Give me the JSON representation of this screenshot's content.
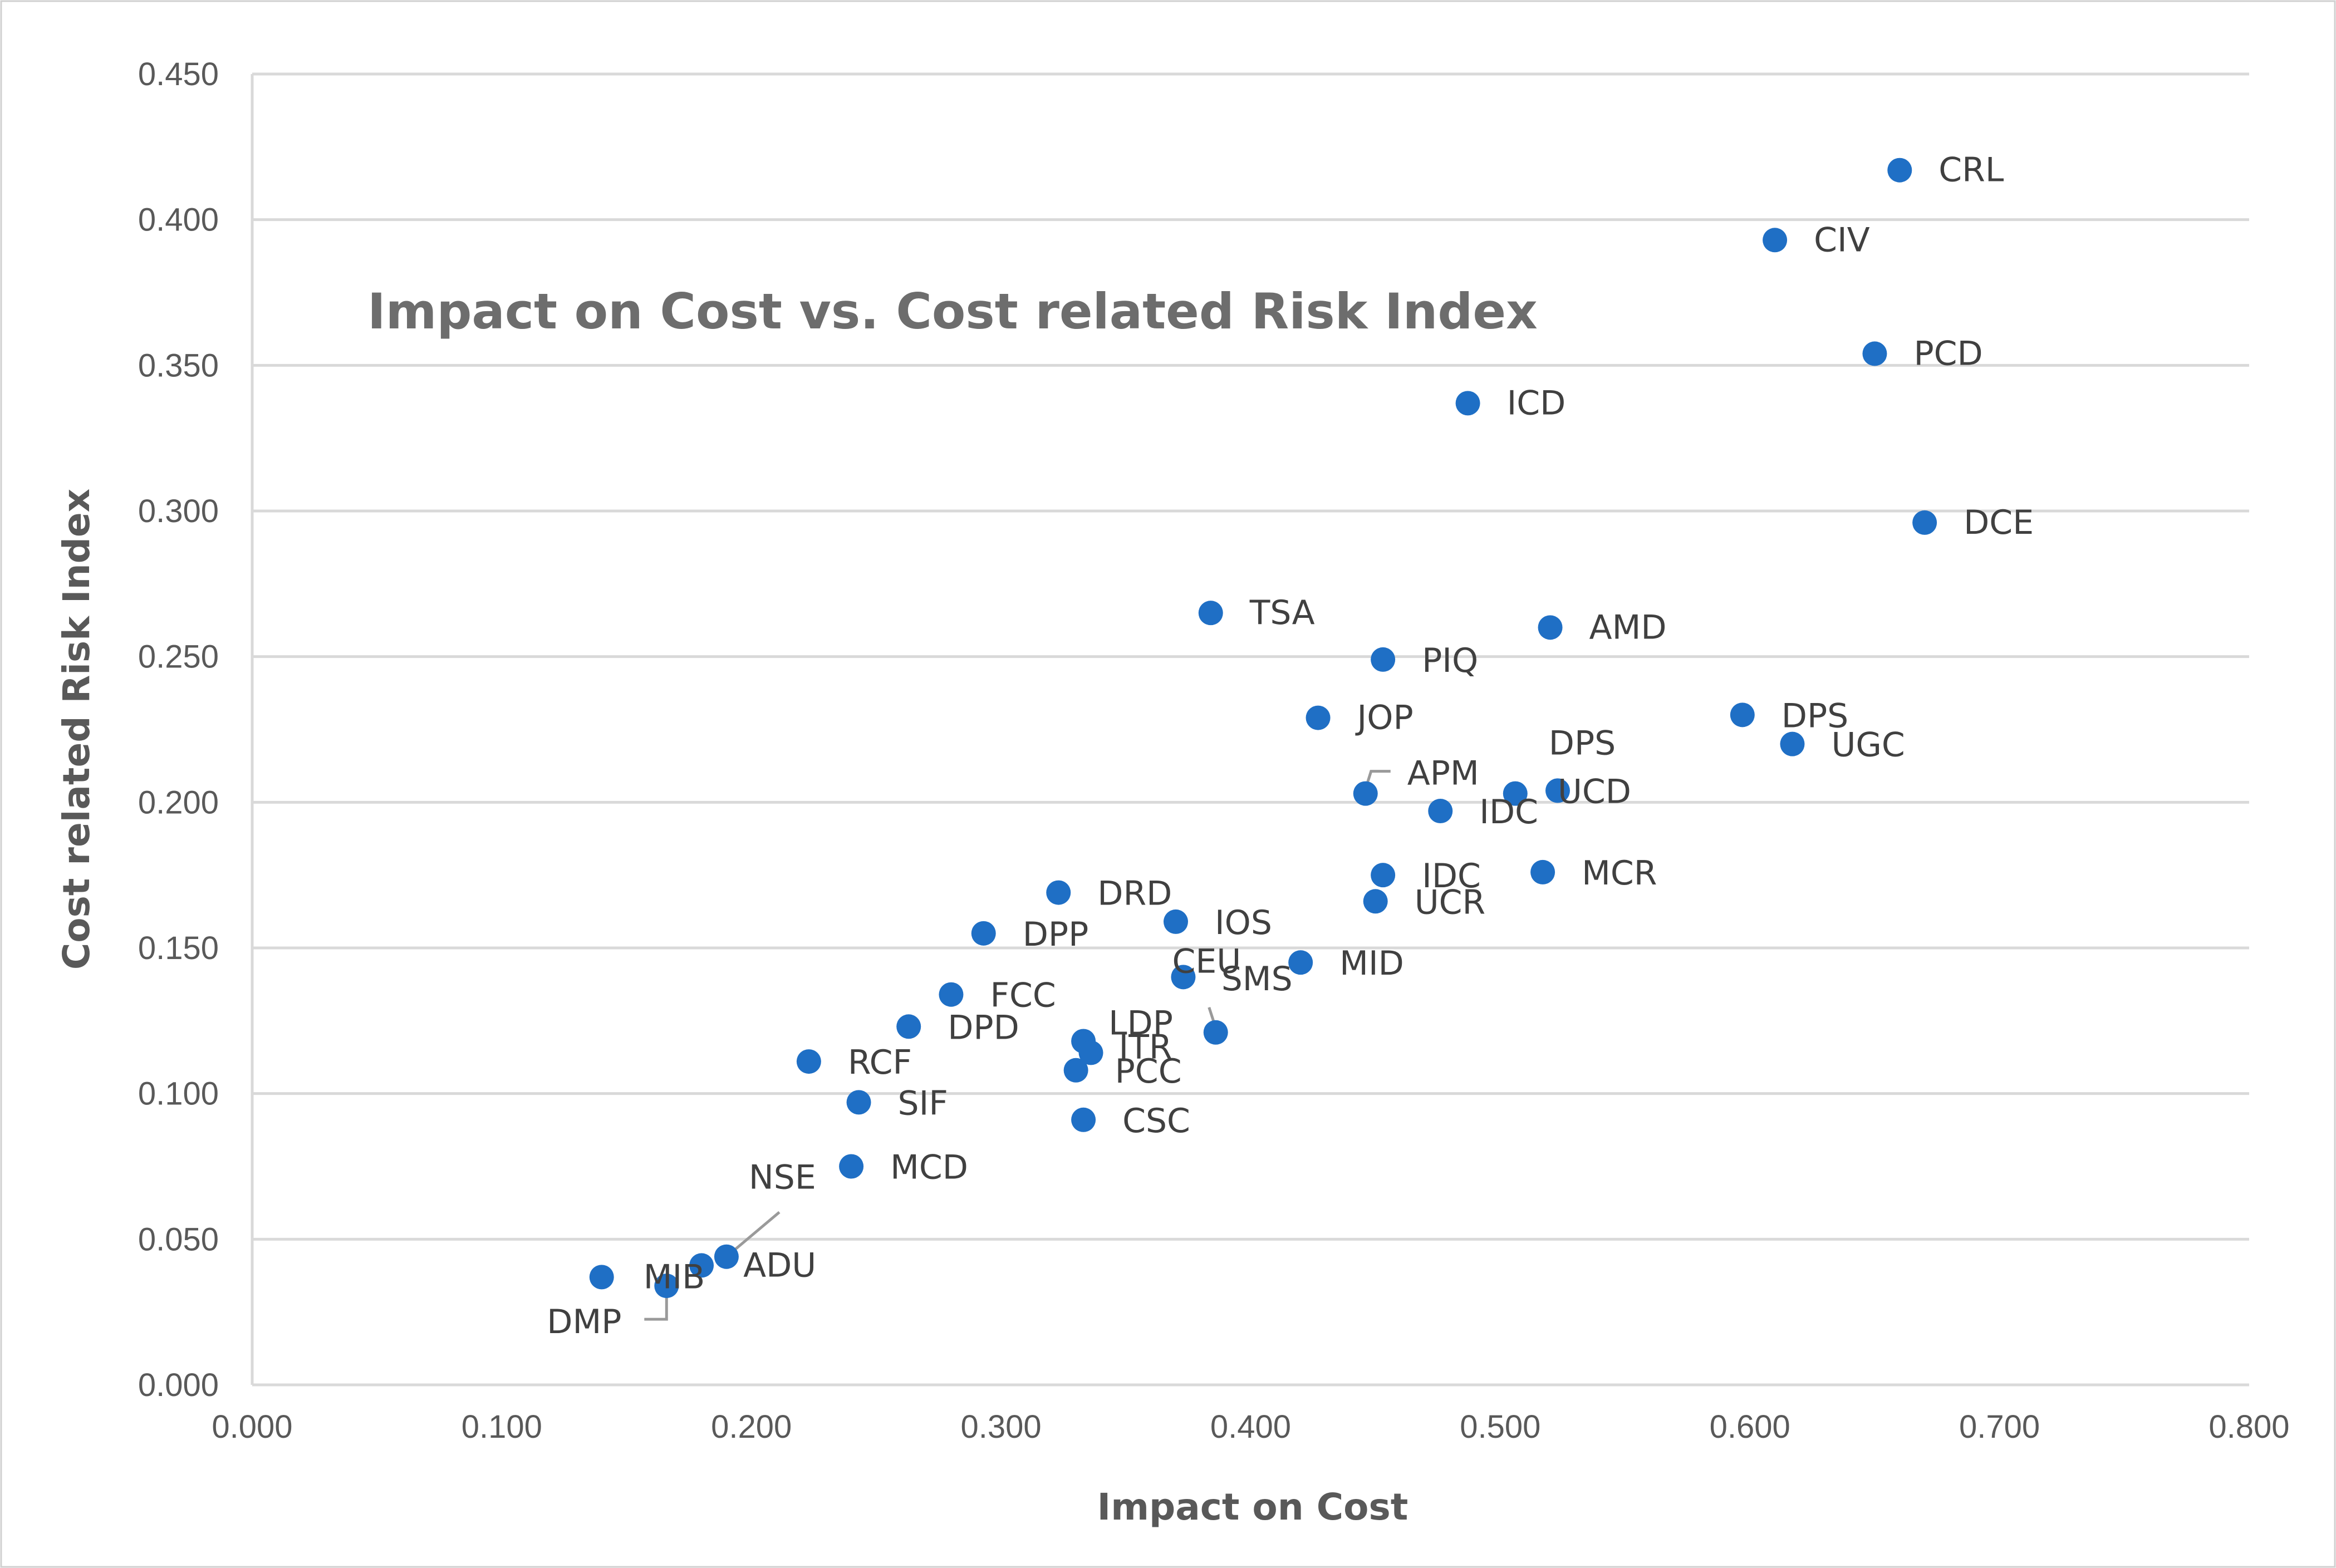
{
  "chart_data": {
    "type": "scatter",
    "title": "Impact on Cost vs. Cost related Risk Index",
    "xlabel": "Impact on Cost",
    "ylabel": "Cost related Risk Index",
    "xlim": [
      0,
      0.8
    ],
    "ylim": [
      0,
      0.45
    ],
    "x_ticks": [
      "0.000",
      "0.100",
      "0.200",
      "0.300",
      "0.400",
      "0.500",
      "0.600",
      "0.700",
      "0.800"
    ],
    "y_ticks": [
      "0.000",
      "0.050",
      "0.100",
      "0.150",
      "0.200",
      "0.250",
      "0.300",
      "0.350",
      "0.400",
      "0.450"
    ],
    "grid": "horizontal",
    "legend": "none",
    "marker_color": "#1f6fc5",
    "points": [
      {
        "label": "CRL",
        "x": 0.66,
        "y": 0.417
      },
      {
        "label": "CIV",
        "x": 0.61,
        "y": 0.393
      },
      {
        "label": "PCD",
        "x": 0.65,
        "y": 0.354
      },
      {
        "label": "ICD",
        "x": 0.487,
        "y": 0.337
      },
      {
        "label": "DCE",
        "x": 0.67,
        "y": 0.296
      },
      {
        "label": "TSA",
        "x": 0.384,
        "y": 0.265
      },
      {
        "label": "AMD",
        "x": 0.52,
        "y": 0.26
      },
      {
        "label": "PIQ",
        "x": 0.453,
        "y": 0.249
      },
      {
        "label": "JOP",
        "x": 0.427,
        "y": 0.229
      },
      {
        "label": "DPS",
        "x": 0.597,
        "y": 0.23
      },
      {
        "label": "UGC",
        "x": 0.617,
        "y": 0.22
      },
      {
        "label": "APM",
        "x": 0.446,
        "y": 0.203
      },
      {
        "label": "DPS",
        "x": 0.506,
        "y": 0.203
      },
      {
        "label": "UCD",
        "x": 0.523,
        "y": 0.204
      },
      {
        "label": "IDC",
        "x": 0.476,
        "y": 0.197
      },
      {
        "label": "IDC",
        "x": 0.453,
        "y": 0.175
      },
      {
        "label": "MCR",
        "x": 0.517,
        "y": 0.176
      },
      {
        "label": "UCR",
        "x": 0.45,
        "y": 0.166
      },
      {
        "label": "DRD",
        "x": 0.323,
        "y": 0.169
      },
      {
        "label": "IOS",
        "x": 0.37,
        "y": 0.159
      },
      {
        "label": "DPP",
        "x": 0.293,
        "y": 0.155
      },
      {
        "label": "MID",
        "x": 0.42,
        "y": 0.145
      },
      {
        "label": "CEU",
        "x": 0.373,
        "y": 0.14
      },
      {
        "label": "SMS",
        "x": 0.386,
        "y": 0.121
      },
      {
        "label": "FCC",
        "x": 0.28,
        "y": 0.134
      },
      {
        "label": "DPD",
        "x": 0.263,
        "y": 0.123
      },
      {
        "label": "LDP",
        "x": 0.333,
        "y": 0.118
      },
      {
        "label": "ITR",
        "x": 0.336,
        "y": 0.114
      },
      {
        "label": "PCC",
        "x": 0.33,
        "y": 0.108
      },
      {
        "label": "RCF",
        "x": 0.223,
        "y": 0.111
      },
      {
        "label": "SIF",
        "x": 0.243,
        "y": 0.097
      },
      {
        "label": "CSC",
        "x": 0.333,
        "y": 0.091
      },
      {
        "label": "MCD",
        "x": 0.24,
        "y": 0.075
      },
      {
        "label": "NSE",
        "x": 0.19,
        "y": 0.044
      },
      {
        "label": "ADU",
        "x": 0.18,
        "y": 0.041
      },
      {
        "label": "MIB",
        "x": 0.14,
        "y": 0.037
      },
      {
        "label": "DMP",
        "x": 0.166,
        "y": 0.034
      }
    ]
  }
}
